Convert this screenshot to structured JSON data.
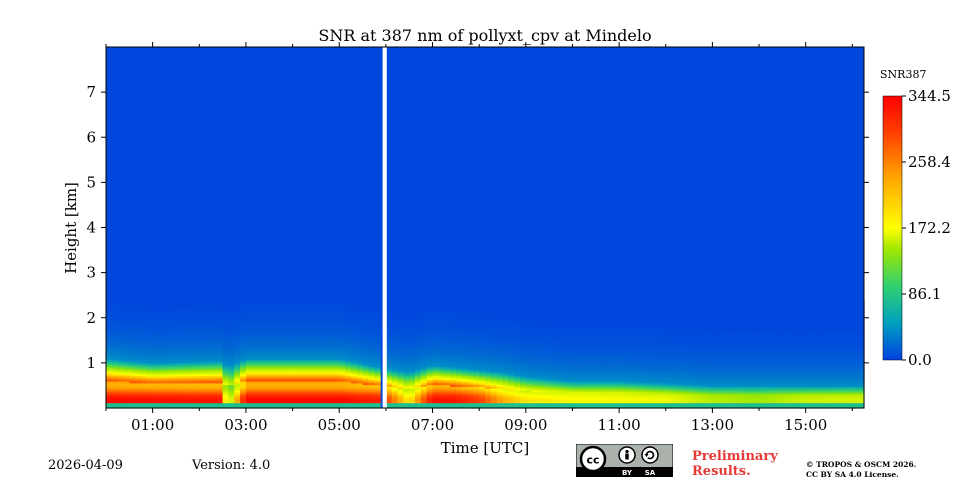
{
  "chart_data": {
    "type": "heatmap",
    "title": "SNR at 387 nm of pollyxt_cpv at Mindelo",
    "xlabel": "Time [UTC]",
    "ylabel": "Height [km]",
    "x_range_hours": [
      0.0,
      16.25
    ],
    "y_range_km": [
      0.0,
      8.0
    ],
    "x_ticks": [
      "01:00",
      "03:00",
      "05:00",
      "07:00",
      "09:00",
      "11:00",
      "13:00",
      "15:00"
    ],
    "x_tick_hours": [
      1,
      3,
      5,
      7,
      9,
      11,
      13,
      15
    ],
    "y_ticks": [
      "1",
      "2",
      "3",
      "4",
      "5",
      "6",
      "7"
    ],
    "y_tick_values": [
      1,
      2,
      3,
      4,
      5,
      6,
      7
    ],
    "colorbar": {
      "label": "SNR387",
      "ticks": [
        "344.5",
        "258.4",
        "172.2",
        "86.1",
        "0.0"
      ],
      "tick_values": [
        344.5,
        258.4,
        172.2,
        86.1,
        0.0
      ],
      "range": [
        0.0,
        344.5
      ],
      "colormap": [
        "#0040e0",
        "#00a0c0",
        "#30d070",
        "#a0e800",
        "#ffff00",
        "#ffa000",
        "#ff4000",
        "#ff0000"
      ]
    },
    "data_gaps_hours": [
      [
        5.93,
        6.02
      ]
    ],
    "time_profile": {
      "hours": [
        0.0,
        1.0,
        2.5,
        2.6,
        3.0,
        5.0,
        5.9,
        6.5,
        7.0,
        7.5,
        8.0,
        8.5,
        9.0,
        10.0,
        11.0,
        12.0,
        13.0,
        14.0,
        15.0,
        16.25
      ],
      "peak_snr": [
        340,
        335,
        330,
        130,
        340,
        340,
        320,
        200,
        335,
        330,
        300,
        240,
        210,
        200,
        195,
        190,
        160,
        150,
        170,
        175
      ],
      "layer_top_km": [
        1.1,
        1.0,
        1.05,
        0.9,
        1.1,
        1.1,
        0.9,
        0.8,
        0.95,
        0.9,
        0.85,
        0.8,
        0.7,
        0.6,
        0.6,
        0.55,
        0.5,
        0.5,
        0.5,
        0.5
      ]
    }
  },
  "footer": {
    "date": "2026-04-09",
    "version": "Version: 4.0",
    "license_badge": {
      "cc": "cc",
      "by": "BY",
      "sa": "SA"
    },
    "preliminary_line1": "Preliminary",
    "preliminary_line2": "Results.",
    "copyright_line1": "© TROPOS & OSCM 2026.",
    "copyright_line2": "CC BY SA 4.0 License."
  }
}
